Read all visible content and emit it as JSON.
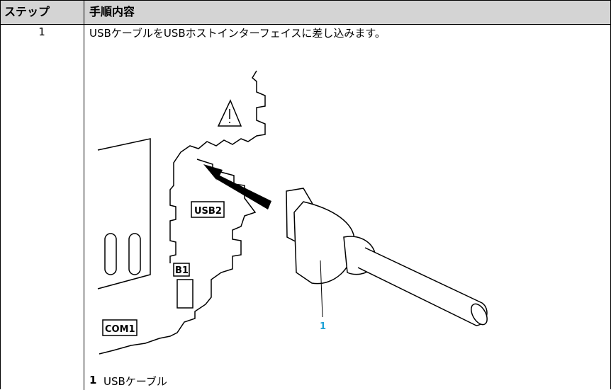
{
  "table": {
    "headers": [
      "ステップ",
      "手順内容"
    ],
    "rows": [
      {
        "step": "1",
        "instruction": "USBケーブルをUSBホストインターフェイスに差し込みます。",
        "figure": {
          "labels": [
            "USB2",
            "B1",
            "COM1"
          ],
          "callout": "1"
        },
        "legend": {
          "number": "1",
          "text": "USBケーブル"
        }
      }
    ]
  }
}
